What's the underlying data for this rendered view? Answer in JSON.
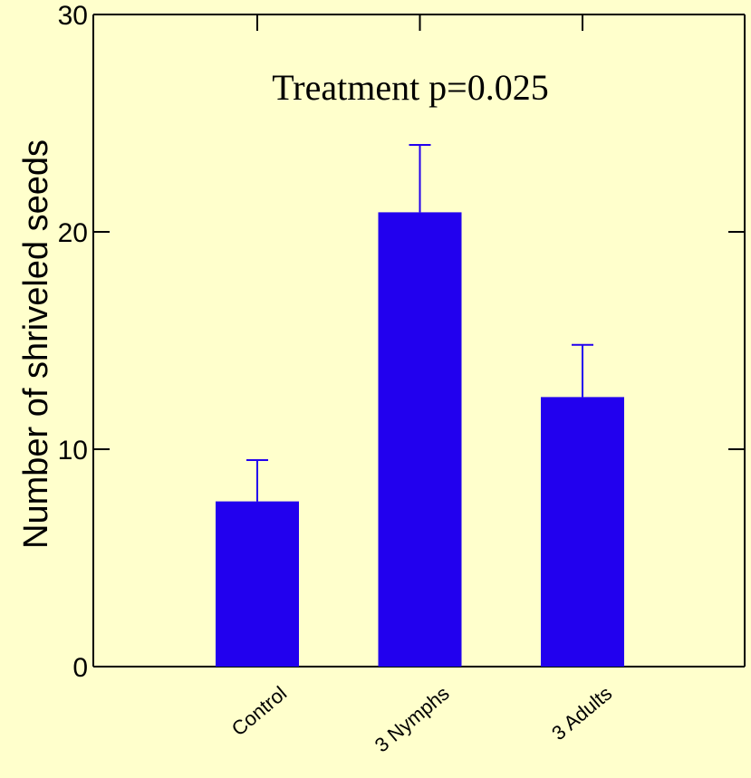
{
  "chart_data": {
    "type": "bar",
    "title": "",
    "annotation": "Treatment p=0.025",
    "xlabel": "",
    "ylabel": "Number of shriveled seeds",
    "categories": [
      "Control",
      "3 Nymphs",
      "3 Adults"
    ],
    "values": [
      7.6,
      20.9,
      12.4
    ],
    "error_upper": [
      9.5,
      24.0,
      14.8
    ],
    "ylim": [
      0,
      30
    ],
    "yticks": [
      0,
      10,
      20,
      30
    ],
    "grid": false,
    "legend": "none",
    "bar_color": "#2200ee",
    "background_color": "#ffffcc"
  }
}
